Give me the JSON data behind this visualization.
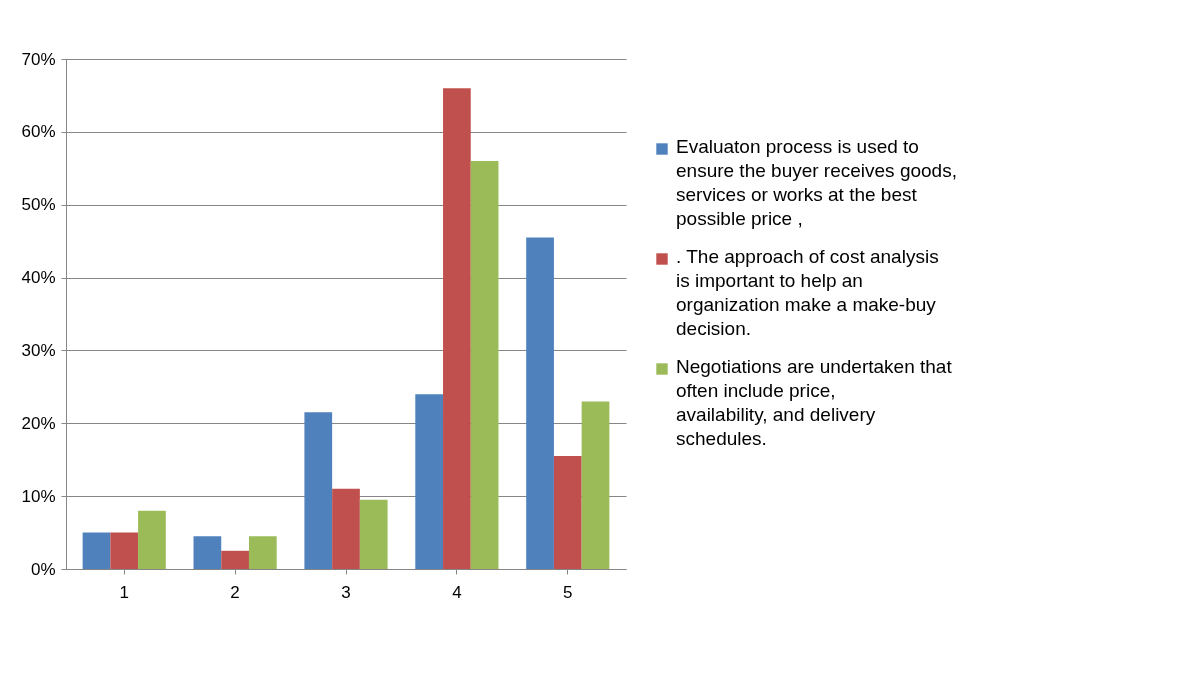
{
  "chart_data": {
    "type": "bar",
    "categories": [
      "1",
      "2",
      "3",
      "4",
      "5"
    ],
    "series": [
      {
        "name": "Evaluaton  process is used to ensure the buyer receives goods, services or works at the best possible price ,",
        "color": "#4f81bd",
        "values": [
          5,
          4.5,
          21.5,
          24,
          45.5
        ]
      },
      {
        "name": ". The approach of cost analysis is important to help an organization make a make-buy decision.",
        "color": "#c0504d",
        "values": [
          5,
          2.5,
          11,
          66,
          15.5
        ]
      },
      {
        "name": "Negotiations are undertaken that often include price, availability, and delivery schedules.",
        "color": "#9bbb59",
        "values": [
          8,
          4.5,
          9.5,
          56,
          23
        ]
      }
    ],
    "ylim": [
      0,
      70
    ],
    "yticks": [
      {
        "value": 0,
        "label": "0%"
      },
      {
        "value": 10,
        "label": "10%"
      },
      {
        "value": 20,
        "label": "20%"
      },
      {
        "value": 30,
        "label": "30%"
      },
      {
        "value": 40,
        "label": "40%"
      },
      {
        "value": 50,
        "label": "50%"
      },
      {
        "value": 60,
        "label": "60%"
      },
      {
        "value": 70,
        "label": "70%"
      }
    ],
    "grid": "y",
    "legend": "right"
  }
}
